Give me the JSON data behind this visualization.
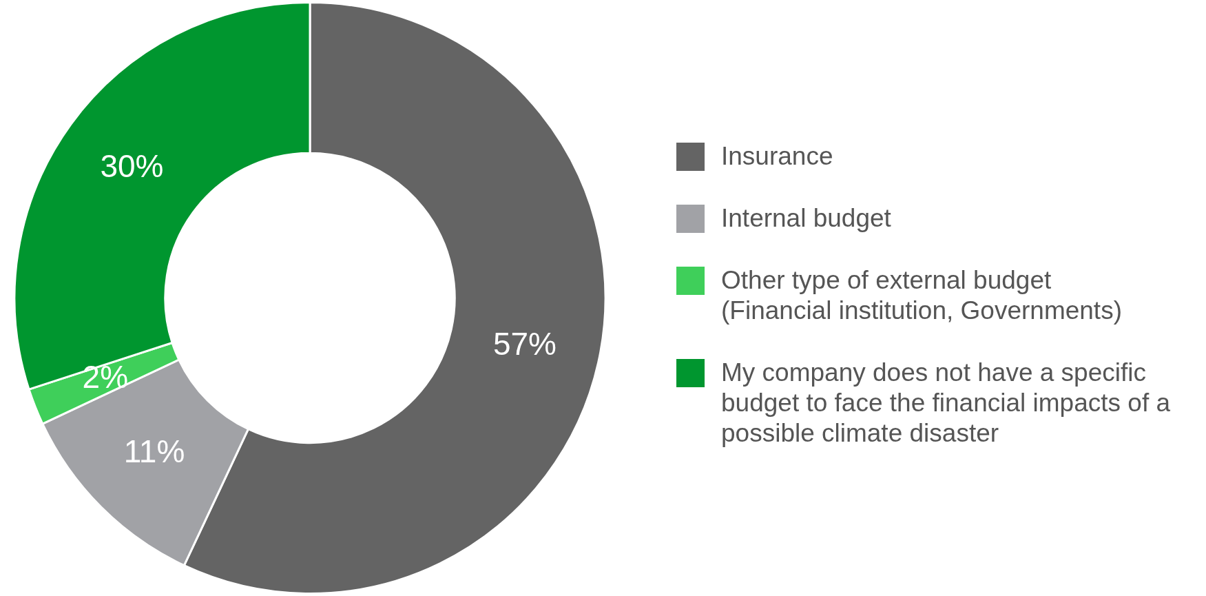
{
  "chart_data": {
    "type": "donut",
    "categories": [
      "Insurance",
      "Internal budget",
      "Other type of external budget (Financial institution, Governments)",
      "My company does not have a specific budget to face the financial impacts of a possible climate disaster"
    ],
    "values": [
      57,
      11,
      2,
      30
    ],
    "colors": [
      "#646464",
      "#a1a2a6",
      "#3fcf5a",
      "#00962f"
    ],
    "value_labels": [
      "57%",
      "11%",
      "2%",
      "30%"
    ],
    "legend": "right"
  }
}
